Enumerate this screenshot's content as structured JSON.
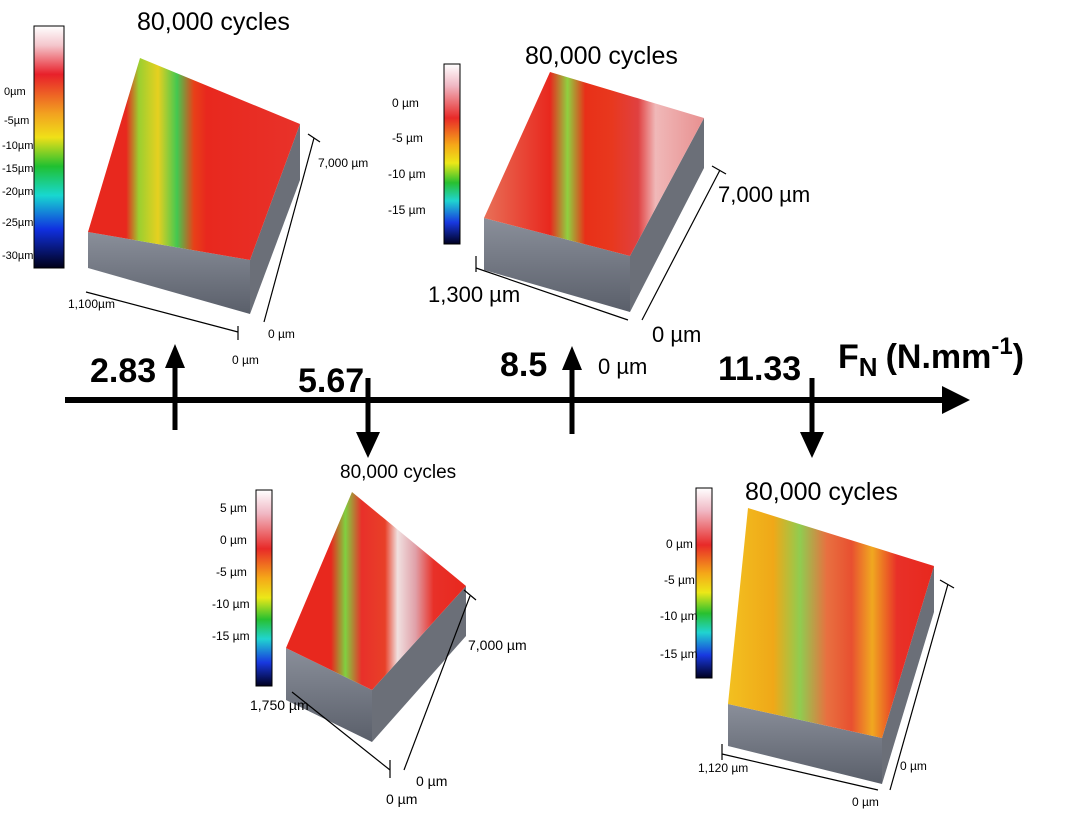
{
  "axis": {
    "title_main": "F",
    "title_sub": "N",
    "title_unit": "(N.mm",
    "title_exp": "-1",
    "title_close": ")",
    "values": [
      "2.83",
      "5.67",
      "8.5",
      "11.33"
    ]
  },
  "panels": [
    {
      "force": "2.83",
      "cycles": "80,000 cycles",
      "scale_ticks": [
        "0µm",
        "-5µm",
        "-10µm",
        "-15µm",
        "-20µm",
        "-25µm",
        "-30µm"
      ],
      "dim_width": "1,100µm",
      "dim_length": "7,000 µm",
      "dim_zero_a": "0 µm",
      "dim_zero_b": "0 µm"
    },
    {
      "force": "8.5",
      "cycles": "80,000 cycles",
      "scale_ticks": [
        "0 µm",
        "-5 µm",
        "-10 µm",
        "-15 µm"
      ],
      "dim_width": "1,300 µm",
      "dim_length": "7,000 µm",
      "dim_zero_a": "0 µm",
      "dim_zero_b": "0 µm"
    },
    {
      "force": "5.67",
      "cycles": "80,000 cycles",
      "scale_ticks": [
        "5 µm",
        "0 µm",
        "-5 µm",
        "-10 µm",
        "-15 µm"
      ],
      "dim_width": "1,750 µm",
      "dim_length": "7,000 µm",
      "dim_zero_a": "0 µm",
      "dim_zero_b": "0 µm"
    },
    {
      "force": "11.33",
      "cycles": "80,000 cycles",
      "scale_ticks": [
        "0 µm",
        "-5 µm",
        "-10 µm",
        "-15 µm"
      ],
      "dim_width": "1,120 µm",
      "dim_zero_a": "0 µm",
      "dim_zero_b": "0 µm"
    }
  ]
}
